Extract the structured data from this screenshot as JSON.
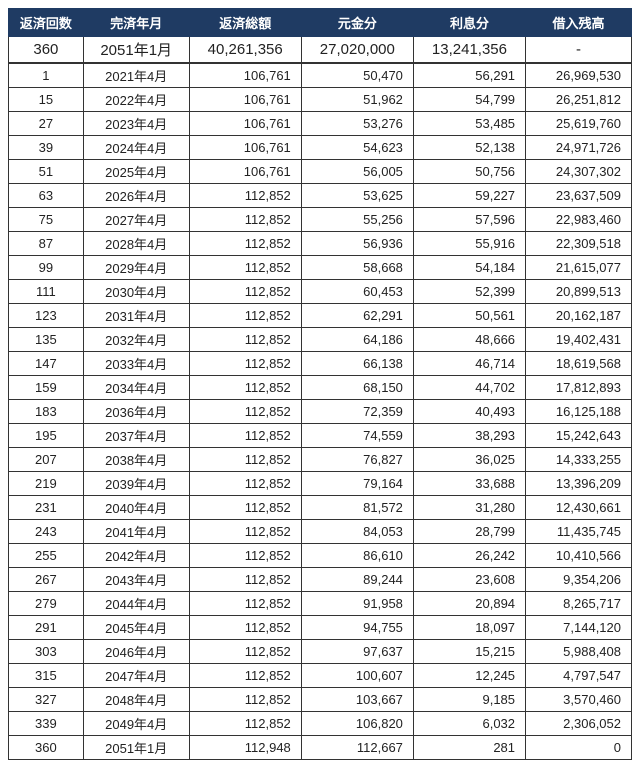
{
  "table": {
    "columns": [
      "返済回数",
      "完済年月",
      "返済総額",
      "元金分",
      "利息分",
      "借入残高"
    ],
    "summary": [
      "360",
      "2051年1月",
      "40,261,356",
      "27,020,000",
      "13,241,356",
      "-"
    ],
    "rows": [
      [
        "1",
        "2021年4月",
        "106,761",
        "50,470",
        "56,291",
        "26,969,530"
      ],
      [
        "15",
        "2022年4月",
        "106,761",
        "51,962",
        "54,799",
        "26,251,812"
      ],
      [
        "27",
        "2023年4月",
        "106,761",
        "53,276",
        "53,485",
        "25,619,760"
      ],
      [
        "39",
        "2024年4月",
        "106,761",
        "54,623",
        "52,138",
        "24,971,726"
      ],
      [
        "51",
        "2025年4月",
        "106,761",
        "56,005",
        "50,756",
        "24,307,302"
      ],
      [
        "63",
        "2026年4月",
        "112,852",
        "53,625",
        "59,227",
        "23,637,509"
      ],
      [
        "75",
        "2027年4月",
        "112,852",
        "55,256",
        "57,596",
        "22,983,460"
      ],
      [
        "87",
        "2028年4月",
        "112,852",
        "56,936",
        "55,916",
        "22,309,518"
      ],
      [
        "99",
        "2029年4月",
        "112,852",
        "58,668",
        "54,184",
        "21,615,077"
      ],
      [
        "111",
        "2030年4月",
        "112,852",
        "60,453",
        "52,399",
        "20,899,513"
      ],
      [
        "123",
        "2031年4月",
        "112,852",
        "62,291",
        "50,561",
        "20,162,187"
      ],
      [
        "135",
        "2032年4月",
        "112,852",
        "64,186",
        "48,666",
        "19,402,431"
      ],
      [
        "147",
        "2033年4月",
        "112,852",
        "66,138",
        "46,714",
        "18,619,568"
      ],
      [
        "159",
        "2034年4月",
        "112,852",
        "68,150",
        "44,702",
        "17,812,893"
      ],
      [
        "183",
        "2036年4月",
        "112,852",
        "72,359",
        "40,493",
        "16,125,188"
      ],
      [
        "195",
        "2037年4月",
        "112,852",
        "74,559",
        "38,293",
        "15,242,643"
      ],
      [
        "207",
        "2038年4月",
        "112,852",
        "76,827",
        "36,025",
        "14,333,255"
      ],
      [
        "219",
        "2039年4月",
        "112,852",
        "79,164",
        "33,688",
        "13,396,209"
      ],
      [
        "231",
        "2040年4月",
        "112,852",
        "81,572",
        "31,280",
        "12,430,661"
      ],
      [
        "243",
        "2041年4月",
        "112,852",
        "84,053",
        "28,799",
        "11,435,745"
      ],
      [
        "255",
        "2042年4月",
        "112,852",
        "86,610",
        "26,242",
        "10,410,566"
      ],
      [
        "267",
        "2043年4月",
        "112,852",
        "89,244",
        "23,608",
        "9,354,206"
      ],
      [
        "279",
        "2044年4月",
        "112,852",
        "91,958",
        "20,894",
        "8,265,717"
      ],
      [
        "291",
        "2045年4月",
        "112,852",
        "94,755",
        "18,097",
        "7,144,120"
      ],
      [
        "303",
        "2046年4月",
        "112,852",
        "97,637",
        "15,215",
        "5,988,408"
      ],
      [
        "315",
        "2047年4月",
        "112,852",
        "100,607",
        "12,245",
        "4,797,547"
      ],
      [
        "327",
        "2048年4月",
        "112,852",
        "103,667",
        "9,185",
        "3,570,460"
      ],
      [
        "339",
        "2049年4月",
        "112,852",
        "106,820",
        "6,032",
        "2,306,052"
      ],
      [
        "360",
        "2051年1月",
        "112,948",
        "112,667",
        "281",
        "0"
      ]
    ],
    "header_bg": "#1f3b63",
    "header_fg": "#ffffff",
    "border_color": "#333333",
    "body_fg": "#222222",
    "font_family": "Hiragino Sans, Meiryo, sans-serif",
    "header_fontsize": 13,
    "body_fontsize": 13,
    "summary_fontsize": 15
  }
}
